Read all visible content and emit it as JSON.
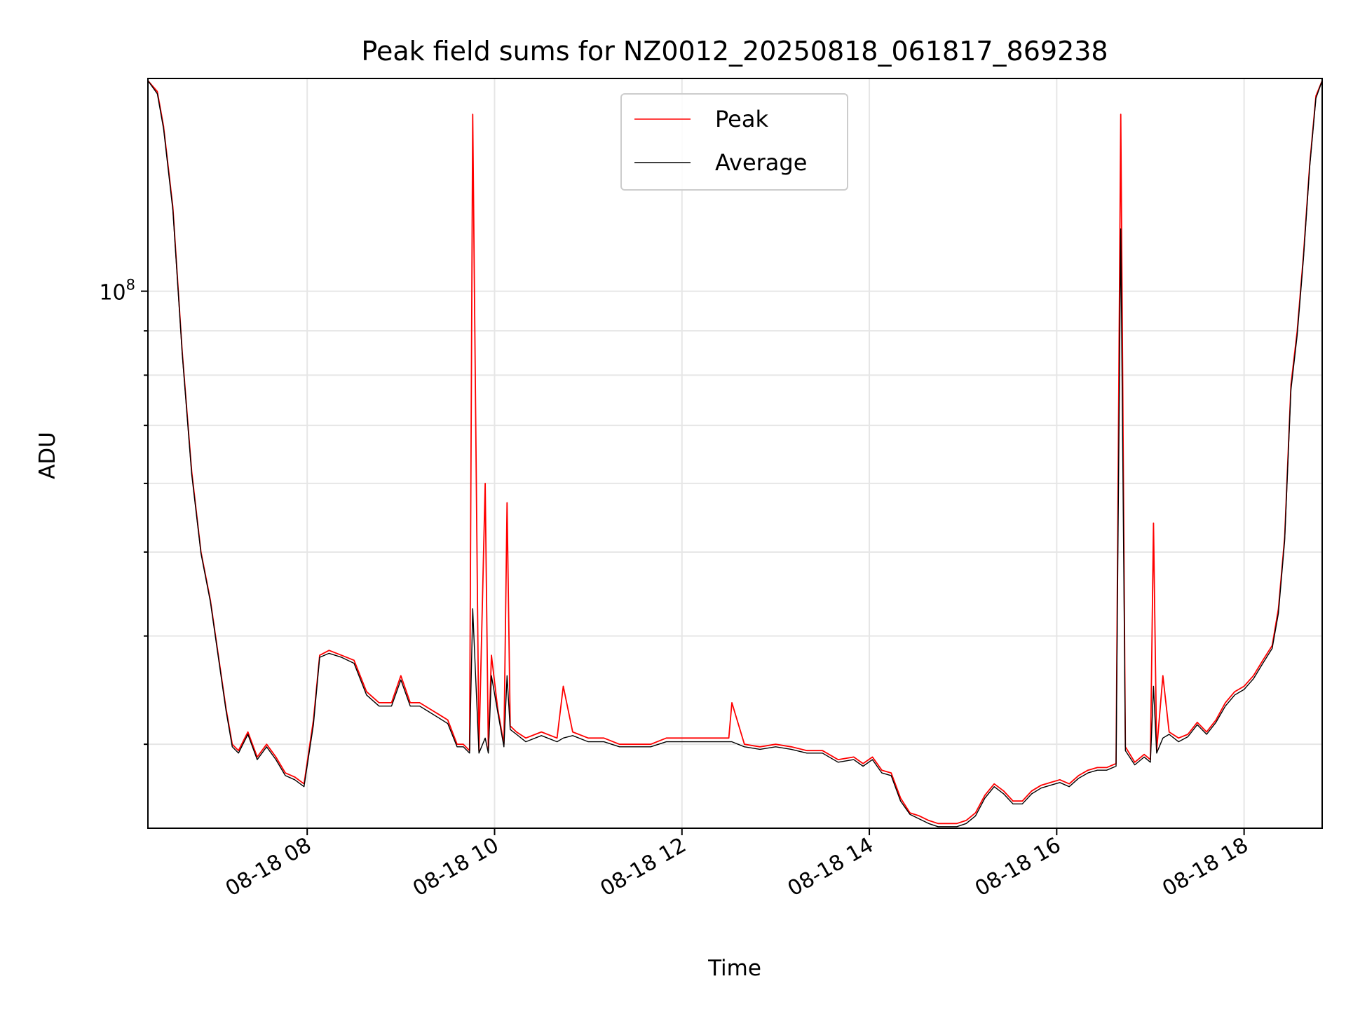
{
  "chart_data": {
    "type": "line",
    "title": "Peak field sums for NZ0012_20250818_061817_869238",
    "xlabel": "Time",
    "ylabel": "ADU",
    "y_scale": "log",
    "ylim": [
      24000000,
      176000000
    ],
    "xlim": [
      "2025-08-18 06:18",
      "2025-08-18 18:50"
    ],
    "x_ticks": [
      "08-18 08",
      "08-18 10",
      "08-18 12",
      "08-18 14",
      "08-18 16",
      "08-18 18"
    ],
    "y_ticks": [
      {
        "value": 100000000,
        "label_base": "10",
        "label_exp": "8"
      }
    ],
    "grid": true,
    "legend": "upper center",
    "series": [
      {
        "name": "Peak",
        "color": "#ff0000",
        "x": [
          "06:18",
          "06:24",
          "06:28",
          "06:34",
          "06:40",
          "06:46",
          "06:52",
          "06:58",
          "07:04",
          "07:08",
          "07:12",
          "07:16",
          "07:22",
          "07:28",
          "07:34",
          "07:40",
          "07:46",
          "07:52",
          "07:58",
          "08:04",
          "08:08",
          "08:14",
          "08:22",
          "08:30",
          "08:38",
          "08:46",
          "08:54",
          "09:00",
          "09:06",
          "09:12",
          "09:18",
          "09:24",
          "09:30",
          "09:36",
          "09:40",
          "09:44",
          "09:46",
          "09:50",
          "09:54",
          "09:56",
          "09:58",
          "10:02",
          "10:06",
          "10:08",
          "10:10",
          "10:14",
          "10:20",
          "10:30",
          "10:40",
          "10:44",
          "10:50",
          "11:00",
          "11:10",
          "11:20",
          "11:30",
          "11:40",
          "11:50",
          "12:00",
          "12:10",
          "12:20",
          "12:30",
          "12:32",
          "12:40",
          "12:50",
          "13:00",
          "13:10",
          "13:20",
          "13:30",
          "13:40",
          "13:50",
          "13:56",
          "14:02",
          "14:08",
          "14:14",
          "14:20",
          "14:26",
          "14:32",
          "14:38",
          "14:44",
          "14:50",
          "14:56",
          "15:02",
          "15:08",
          "15:14",
          "15:20",
          "15:26",
          "15:32",
          "15:38",
          "15:44",
          "15:50",
          "15:56",
          "16:02",
          "16:08",
          "16:14",
          "16:20",
          "16:26",
          "16:32",
          "16:38",
          "16:41",
          "16:44",
          "16:50",
          "16:56",
          "17:00",
          "17:02",
          "17:04",
          "17:08",
          "17:12",
          "17:18",
          "17:24",
          "17:30",
          "17:36",
          "17:42",
          "17:48",
          "17:54",
          "18:00",
          "18:06",
          "18:12",
          "18:18",
          "18:22",
          "18:26",
          "18:30",
          "18:34",
          "18:38",
          "18:42",
          "18:46",
          "18:50"
        ],
        "values": [
          175000000,
          170000000,
          155000000,
          125000000,
          85000000,
          62000000,
          50000000,
          44000000,
          37000000,
          33000000,
          30000000,
          29500000,
          31000000,
          29000000,
          30000000,
          29000000,
          27800000,
          27500000,
          27000000,
          32000000,
          38000000,
          38500000,
          38000000,
          37500000,
          34500000,
          33500000,
          33500000,
          36000000,
          33500000,
          33500000,
          33000000,
          32500000,
          32000000,
          30000000,
          30000000,
          29500000,
          160000000,
          29500000,
          60000000,
          29500000,
          38000000,
          33000000,
          30000000,
          57000000,
          31500000,
          31000000,
          30500000,
          31000000,
          30500000,
          35000000,
          31000000,
          30500000,
          30500000,
          30000000,
          30000000,
          30000000,
          30500000,
          30500000,
          30500000,
          30500000,
          30500000,
          33500000,
          30000000,
          29800000,
          30000000,
          29800000,
          29500000,
          29500000,
          28800000,
          29000000,
          28500000,
          29000000,
          28000000,
          27800000,
          26000000,
          25000000,
          24800000,
          24500000,
          24300000,
          24300000,
          24300000,
          24500000,
          25000000,
          26200000,
          27000000,
          26500000,
          25800000,
          25800000,
          26500000,
          26900000,
          27100000,
          27300000,
          27000000,
          27600000,
          28000000,
          28200000,
          28200000,
          28500000,
          160000000,
          29800000,
          28600000,
          29200000,
          28800000,
          54000000,
          29500000,
          36000000,
          31000000,
          30500000,
          30800000,
          31800000,
          31000000,
          32000000,
          33500000,
          34500000,
          35000000,
          36000000,
          37500000,
          39000000,
          43000000,
          52000000,
          78000000,
          90000000,
          110000000,
          140000000,
          168000000,
          175000000
        ]
      },
      {
        "name": "Average",
        "color": "#000000",
        "x": [
          "06:18",
          "06:24",
          "06:28",
          "06:34",
          "06:40",
          "06:46",
          "06:52",
          "06:58",
          "07:04",
          "07:08",
          "07:12",
          "07:16",
          "07:22",
          "07:28",
          "07:34",
          "07:40",
          "07:46",
          "07:52",
          "07:58",
          "08:04",
          "08:08",
          "08:14",
          "08:22",
          "08:30",
          "08:38",
          "08:46",
          "08:54",
          "09:00",
          "09:06",
          "09:12",
          "09:18",
          "09:24",
          "09:30",
          "09:36",
          "09:40",
          "09:44",
          "09:46",
          "09:50",
          "09:54",
          "09:56",
          "09:58",
          "10:02",
          "10:06",
          "10:08",
          "10:10",
          "10:14",
          "10:20",
          "10:30",
          "10:40",
          "10:44",
          "10:50",
          "11:00",
          "11:10",
          "11:20",
          "11:30",
          "11:40",
          "11:50",
          "12:00",
          "12:10",
          "12:20",
          "12:30",
          "12:32",
          "12:40",
          "12:50",
          "13:00",
          "13:10",
          "13:20",
          "13:30",
          "13:40",
          "13:50",
          "13:56",
          "14:02",
          "14:08",
          "14:14",
          "14:20",
          "14:26",
          "14:32",
          "14:38",
          "14:44",
          "14:50",
          "14:56",
          "15:02",
          "15:08",
          "15:14",
          "15:20",
          "15:26",
          "15:32",
          "15:38",
          "15:44",
          "15:50",
          "15:56",
          "16:02",
          "16:08",
          "16:14",
          "16:20",
          "16:26",
          "16:32",
          "16:38",
          "16:41",
          "16:44",
          "16:50",
          "16:56",
          "17:00",
          "17:02",
          "17:04",
          "17:08",
          "17:12",
          "17:18",
          "17:24",
          "17:30",
          "17:36",
          "17:42",
          "17:48",
          "17:54",
          "18:00",
          "18:06",
          "18:12",
          "18:18",
          "18:22",
          "18:26",
          "18:30",
          "18:34",
          "18:38",
          "18:42",
          "18:46",
          "18:50"
        ],
        "values": [
          175000000,
          169000000,
          154000000,
          124000000,
          84500000,
          61500000,
          49800000,
          43800000,
          36800000,
          32800000,
          29800000,
          29300000,
          30800000,
          28800000,
          29800000,
          28800000,
          27600000,
          27300000,
          26800000,
          31600000,
          37800000,
          38200000,
          37800000,
          37200000,
          34200000,
          33200000,
          33200000,
          35600000,
          33200000,
          33200000,
          32700000,
          32200000,
          31700000,
          29800000,
          29800000,
          29300000,
          43000000,
          29300000,
          30500000,
          29300000,
          36000000,
          32700000,
          29800000,
          36000000,
          31200000,
          30800000,
          30200000,
          30700000,
          30200000,
          30500000,
          30700000,
          30200000,
          30200000,
          29800000,
          29800000,
          29800000,
          30200000,
          30200000,
          30200000,
          30200000,
          30200000,
          30200000,
          29800000,
          29600000,
          29800000,
          29600000,
          29300000,
          29300000,
          28600000,
          28800000,
          28300000,
          28800000,
          27800000,
          27600000,
          25800000,
          24900000,
          24600000,
          24300000,
          24100000,
          24100000,
          24100000,
          24300000,
          24800000,
          26000000,
          26800000,
          26300000,
          25600000,
          25600000,
          26300000,
          26700000,
          26900000,
          27100000,
          26800000,
          27400000,
          27800000,
          28000000,
          28000000,
          28300000,
          118000000,
          29500000,
          28400000,
          29000000,
          28600000,
          35000000,
          29300000,
          30500000,
          30800000,
          30200000,
          30600000,
          31600000,
          30800000,
          31800000,
          33200000,
          34200000,
          34700000,
          35700000,
          37200000,
          38700000,
          42500000,
          51500000,
          77000000,
          89000000,
          109000000,
          139000000,
          167000000,
          175000000
        ]
      }
    ]
  }
}
